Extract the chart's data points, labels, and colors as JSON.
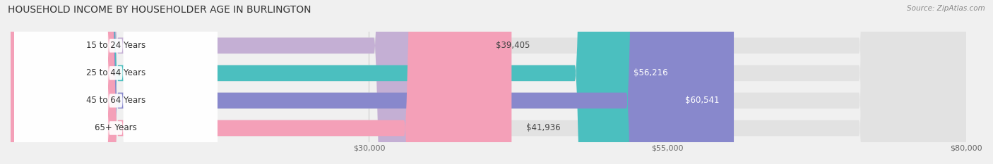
{
  "title": "HOUSEHOLD INCOME BY HOUSEHOLDER AGE IN BURLINGTON",
  "source": "Source: ZipAtlas.com",
  "categories": [
    "15 to 24 Years",
    "25 to 44 Years",
    "45 to 64 Years",
    "65+ Years"
  ],
  "values": [
    39405,
    56216,
    60541,
    41936
  ],
  "bar_colors": [
    "#c4afd4",
    "#4bbfbf",
    "#8888cc",
    "#f4a0b8"
  ],
  "background_color": "#f0f0f0",
  "bar_bg_color": "#e2e2e2",
  "label_bg_color": "#ffffff",
  "xlim": [
    0,
    80000
  ],
  "xticks": [
    30000,
    55000,
    80000
  ],
  "bar_height": 0.58,
  "figsize": [
    14.06,
    2.33
  ],
  "dpi": 100,
  "title_fontsize": 10,
  "source_fontsize": 7.5,
  "label_fontsize": 8.5,
  "tick_fontsize": 8,
  "category_fontsize": 8.5,
  "value_inside_color": "#ffffff",
  "value_outside_color": "#444444",
  "inside_threshold": 50000
}
